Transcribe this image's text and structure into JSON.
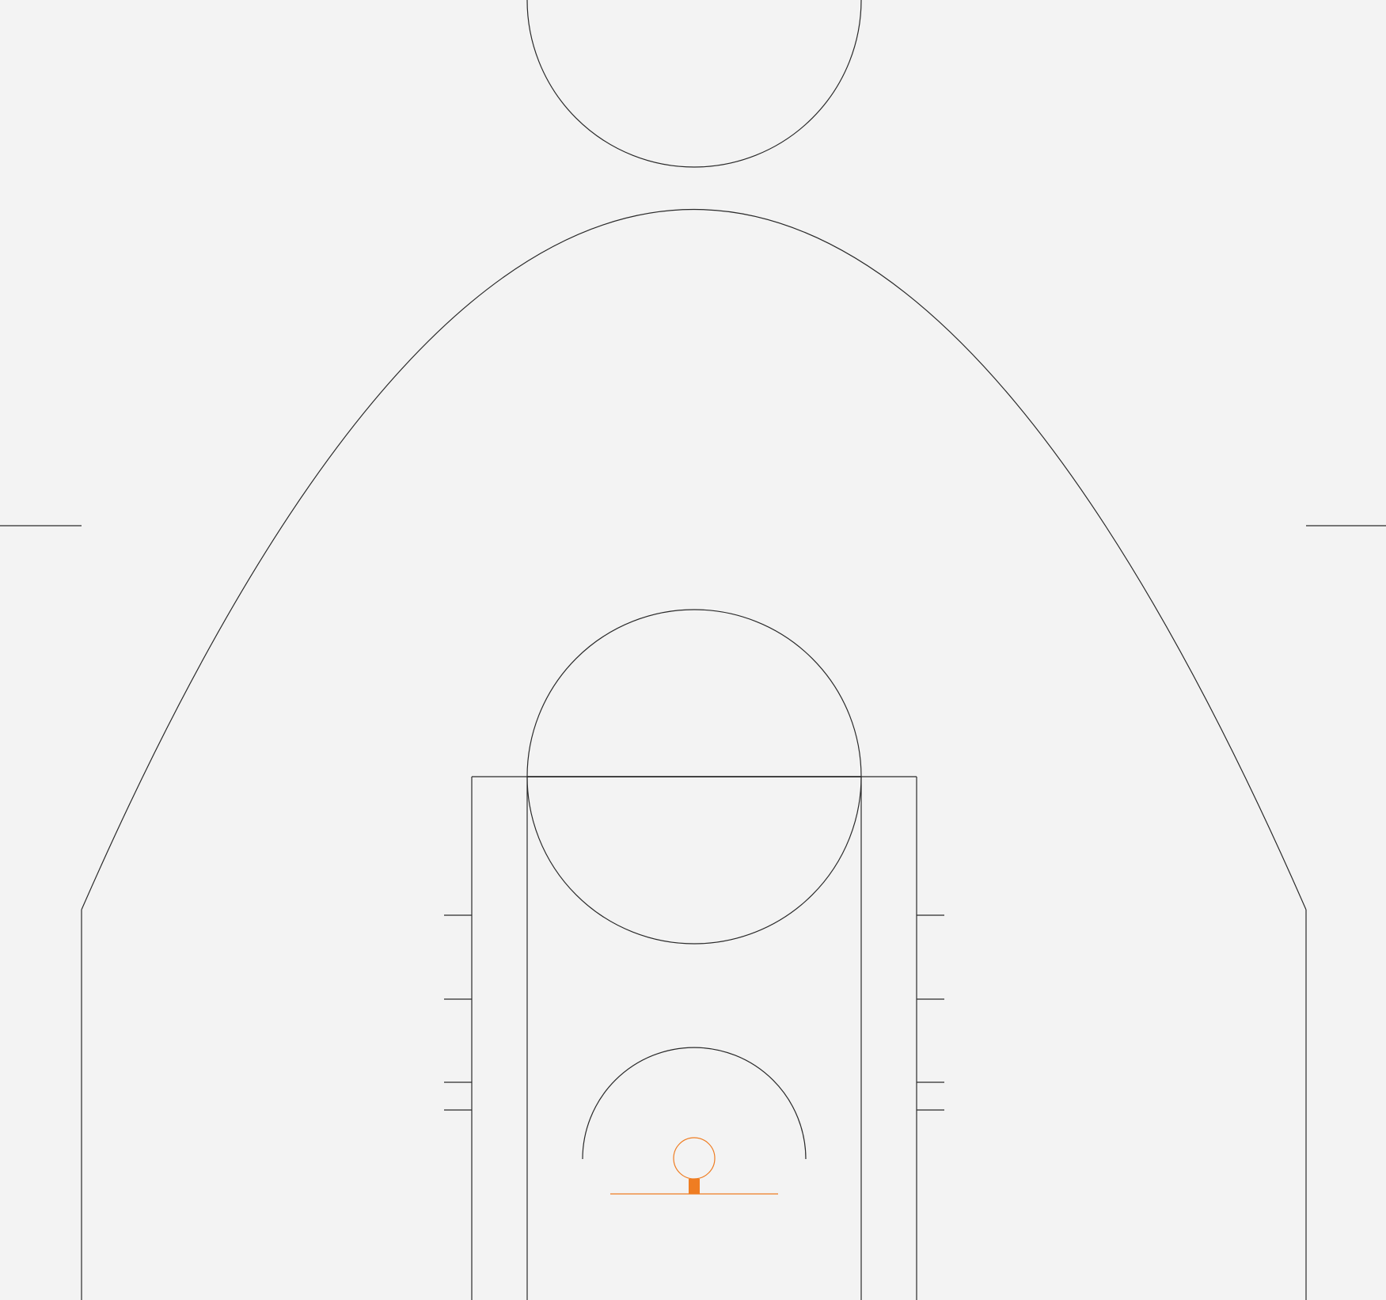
{
  "diagram": {
    "type": "basketball-half-court",
    "background_color": "#f3f3f3",
    "line_color": "#2a2a2a",
    "hoop_color": "#ef7d22",
    "elements": [
      "center-circle",
      "three-point-arc",
      "three-point-corner-lines",
      "hash-marks",
      "key-outer",
      "key-inner",
      "free-throw-line",
      "free-throw-circle",
      "lane-space-marks",
      "restricted-area-arc",
      "backboard",
      "rim",
      "rim-connector"
    ]
  }
}
